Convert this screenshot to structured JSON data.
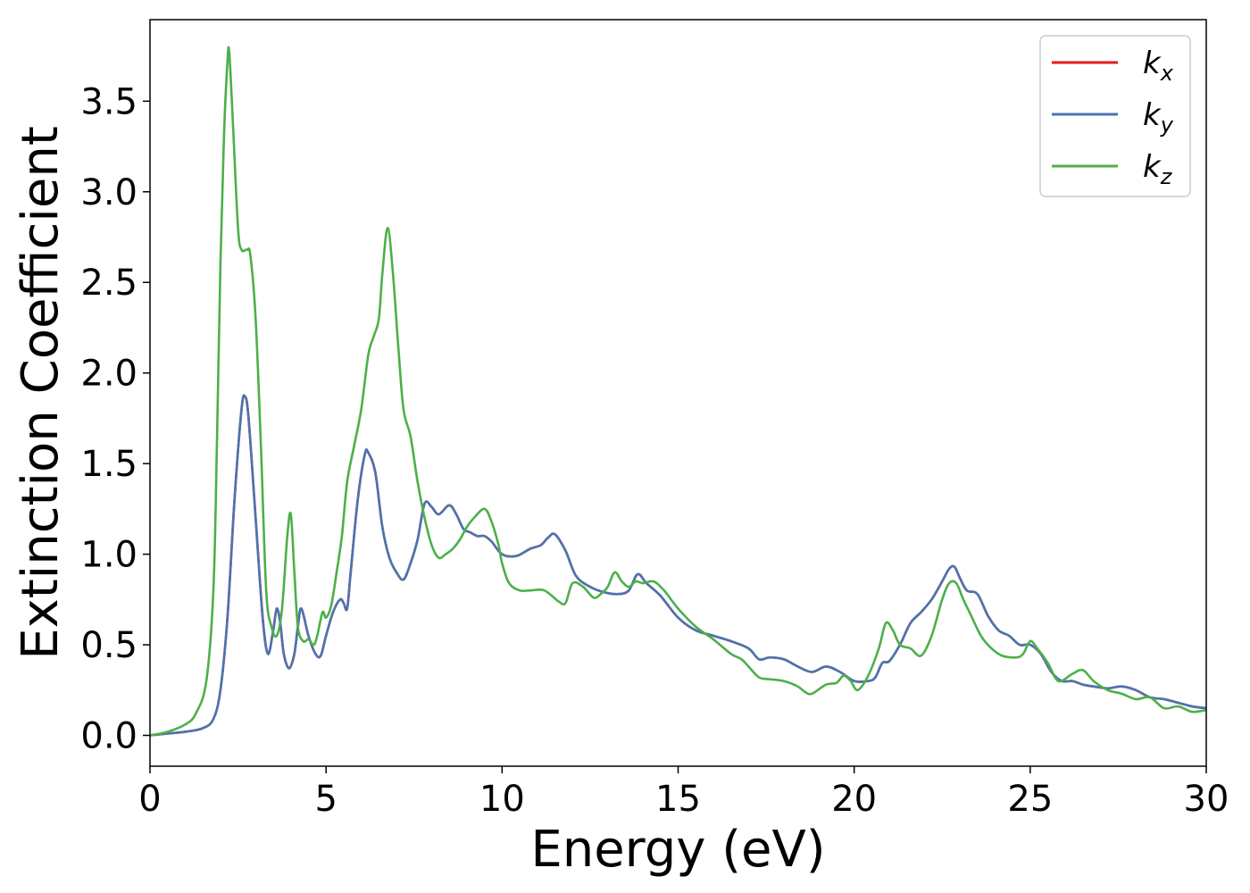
{
  "chart_data": {
    "type": "line",
    "title": "",
    "xlabel": "Energy (eV)",
    "ylabel": "Extinction Coefficient",
    "xlim": [
      0,
      30
    ],
    "ylim": [
      -0.17,
      3.95
    ],
    "xticks": [
      0,
      5,
      10,
      15,
      20,
      25,
      30
    ],
    "xtick_labels": [
      "0",
      "5",
      "10",
      "15",
      "20",
      "25",
      "30"
    ],
    "yticks": [
      0.0,
      0.5,
      1.0,
      1.5,
      2.0,
      2.5,
      3.0,
      3.5
    ],
    "ytick_labels": [
      "0.0",
      "0.5",
      "1.0",
      "1.5",
      "2.0",
      "2.5",
      "3.0",
      "3.5"
    ],
    "grid": false,
    "legend_position": "top-right",
    "series": [
      {
        "name": "k",
        "subscript": "x",
        "color": "#e41a1c",
        "x": [
          0,
          0.5,
          1.0,
          1.5,
          1.8,
          2.0,
          2.2,
          2.4,
          2.6,
          2.7,
          2.8,
          3.0,
          3.2,
          3.35,
          3.5,
          3.6,
          3.7,
          3.8,
          3.95,
          4.1,
          4.2,
          4.3,
          4.5,
          4.7,
          4.85,
          5.0,
          5.2,
          5.4,
          5.5,
          5.6,
          5.7,
          5.9,
          6.1,
          6.2,
          6.4,
          6.6,
          6.8,
          7.0,
          7.2,
          7.4,
          7.6,
          7.8,
          8.0,
          8.2,
          8.5,
          8.7,
          8.9,
          9.1,
          9.3,
          9.5,
          9.7,
          10.0,
          10.4,
          10.8,
          11.1,
          11.3,
          11.5,
          11.8,
          12.1,
          12.5,
          12.9,
          13.3,
          13.6,
          13.85,
          14.1,
          14.5,
          15.0,
          15.5,
          16.0,
          16.5,
          17.0,
          17.3,
          17.6,
          18.0,
          18.4,
          18.8,
          19.2,
          19.6,
          20.0,
          20.4,
          20.6,
          20.8,
          21.0,
          21.3,
          21.6,
          21.9,
          22.2,
          22.5,
          22.7,
          22.85,
          23.0,
          23.2,
          23.5,
          23.8,
          24.1,
          24.4,
          24.7,
          25.0,
          25.3,
          25.6,
          25.9,
          26.2,
          26.5,
          26.8,
          27.2,
          27.6,
          28.0,
          28.4,
          28.8,
          29.2,
          29.6,
          30.0
        ],
        "y": [
          0.0,
          0.01,
          0.02,
          0.04,
          0.09,
          0.25,
          0.65,
          1.3,
          1.8,
          1.87,
          1.75,
          1.2,
          0.65,
          0.45,
          0.58,
          0.7,
          0.62,
          0.45,
          0.37,
          0.45,
          0.6,
          0.7,
          0.55,
          0.45,
          0.44,
          0.55,
          0.68,
          0.75,
          0.73,
          0.7,
          0.9,
          1.3,
          1.55,
          1.56,
          1.45,
          1.15,
          0.98,
          0.9,
          0.86,
          0.95,
          1.08,
          1.28,
          1.26,
          1.22,
          1.27,
          1.22,
          1.14,
          1.12,
          1.1,
          1.1,
          1.07,
          1.0,
          0.99,
          1.03,
          1.05,
          1.09,
          1.11,
          1.02,
          0.88,
          0.82,
          0.79,
          0.78,
          0.8,
          0.89,
          0.84,
          0.77,
          0.65,
          0.58,
          0.55,
          0.52,
          0.48,
          0.42,
          0.43,
          0.42,
          0.38,
          0.35,
          0.38,
          0.35,
          0.3,
          0.3,
          0.32,
          0.4,
          0.41,
          0.5,
          0.62,
          0.68,
          0.75,
          0.85,
          0.92,
          0.93,
          0.87,
          0.8,
          0.78,
          0.66,
          0.58,
          0.55,
          0.5,
          0.5,
          0.45,
          0.35,
          0.3,
          0.3,
          0.28,
          0.27,
          0.26,
          0.27,
          0.25,
          0.21,
          0.2,
          0.18,
          0.16,
          0.15
        ]
      },
      {
        "name": "k",
        "subscript": "y",
        "color": "#4a74b0",
        "x": [
          0,
          0.5,
          1.0,
          1.5,
          1.8,
          2.0,
          2.2,
          2.4,
          2.6,
          2.7,
          2.8,
          3.0,
          3.2,
          3.35,
          3.5,
          3.6,
          3.7,
          3.8,
          3.95,
          4.1,
          4.2,
          4.3,
          4.5,
          4.7,
          4.85,
          5.0,
          5.2,
          5.4,
          5.5,
          5.6,
          5.7,
          5.9,
          6.1,
          6.2,
          6.4,
          6.6,
          6.8,
          7.0,
          7.2,
          7.4,
          7.6,
          7.8,
          8.0,
          8.2,
          8.5,
          8.7,
          8.9,
          9.1,
          9.3,
          9.5,
          9.7,
          10.0,
          10.4,
          10.8,
          11.1,
          11.3,
          11.5,
          11.8,
          12.1,
          12.5,
          12.9,
          13.3,
          13.6,
          13.85,
          14.1,
          14.5,
          15.0,
          15.5,
          16.0,
          16.5,
          17.0,
          17.3,
          17.6,
          18.0,
          18.4,
          18.8,
          19.2,
          19.6,
          20.0,
          20.4,
          20.6,
          20.8,
          21.0,
          21.3,
          21.6,
          21.9,
          22.2,
          22.5,
          22.7,
          22.85,
          23.0,
          23.2,
          23.5,
          23.8,
          24.1,
          24.4,
          24.7,
          25.0,
          25.3,
          25.6,
          25.9,
          26.2,
          26.5,
          26.8,
          27.2,
          27.6,
          28.0,
          28.4,
          28.8,
          29.2,
          29.6,
          30.0
        ],
        "y": [
          0.0,
          0.01,
          0.02,
          0.04,
          0.09,
          0.25,
          0.65,
          1.3,
          1.8,
          1.87,
          1.75,
          1.2,
          0.65,
          0.45,
          0.58,
          0.7,
          0.62,
          0.45,
          0.37,
          0.45,
          0.6,
          0.7,
          0.55,
          0.45,
          0.44,
          0.55,
          0.68,
          0.75,
          0.73,
          0.7,
          0.9,
          1.3,
          1.55,
          1.56,
          1.45,
          1.15,
          0.98,
          0.9,
          0.86,
          0.95,
          1.08,
          1.28,
          1.26,
          1.22,
          1.27,
          1.22,
          1.14,
          1.12,
          1.1,
          1.1,
          1.07,
          1.0,
          0.99,
          1.03,
          1.05,
          1.09,
          1.11,
          1.02,
          0.88,
          0.82,
          0.79,
          0.78,
          0.8,
          0.89,
          0.84,
          0.77,
          0.65,
          0.58,
          0.55,
          0.52,
          0.48,
          0.42,
          0.43,
          0.42,
          0.38,
          0.35,
          0.38,
          0.35,
          0.3,
          0.3,
          0.32,
          0.4,
          0.41,
          0.5,
          0.62,
          0.68,
          0.75,
          0.85,
          0.92,
          0.93,
          0.87,
          0.8,
          0.78,
          0.66,
          0.58,
          0.55,
          0.5,
          0.5,
          0.45,
          0.35,
          0.3,
          0.3,
          0.28,
          0.27,
          0.26,
          0.27,
          0.25,
          0.21,
          0.2,
          0.18,
          0.16,
          0.15
        ]
      },
      {
        "name": "k",
        "subscript": "z",
        "color": "#4daf4a",
        "x": [
          0,
          0.5,
          1.0,
          1.3,
          1.6,
          1.8,
          1.9,
          2.0,
          2.1,
          2.2,
          2.25,
          2.35,
          2.5,
          2.6,
          2.75,
          2.85,
          3.0,
          3.15,
          3.3,
          3.45,
          3.6,
          3.75,
          3.9,
          4.0,
          4.1,
          4.2,
          4.35,
          4.5,
          4.65,
          4.75,
          4.9,
          5.0,
          5.15,
          5.3,
          5.45,
          5.6,
          5.8,
          6.0,
          6.2,
          6.35,
          6.5,
          6.6,
          6.75,
          6.9,
          7.05,
          7.2,
          7.4,
          7.6,
          7.8,
          8.0,
          8.2,
          8.4,
          8.6,
          8.8,
          9.0,
          9.2,
          9.5,
          9.7,
          9.9,
          10.0,
          10.2,
          10.5,
          10.8,
          11.2,
          11.6,
          11.8,
          12.0,
          12.3,
          12.6,
          12.8,
          13.0,
          13.2,
          13.4,
          13.6,
          13.8,
          14.0,
          14.3,
          14.6,
          15.0,
          15.5,
          16.0,
          16.5,
          16.8,
          17.0,
          17.3,
          17.6,
          18.0,
          18.4,
          18.6,
          18.8,
          19.2,
          19.5,
          19.7,
          19.9,
          20.1,
          20.4,
          20.7,
          20.9,
          21.1,
          21.3,
          21.6,
          21.9,
          22.2,
          22.5,
          22.7,
          22.9,
          23.1,
          23.3,
          23.6,
          23.9,
          24.2,
          24.6,
          24.8,
          25.0,
          25.2,
          25.5,
          25.8,
          26.2,
          26.5,
          26.8,
          27.2,
          27.6,
          28.0,
          28.4,
          28.8,
          29.2,
          29.6,
          30.0
        ],
        "y": [
          0.0,
          0.02,
          0.06,
          0.12,
          0.3,
          0.8,
          1.6,
          2.6,
          3.3,
          3.72,
          3.77,
          3.4,
          2.8,
          2.68,
          2.68,
          2.65,
          2.3,
          1.6,
          0.8,
          0.6,
          0.55,
          0.7,
          1.1,
          1.22,
          0.9,
          0.6,
          0.52,
          0.53,
          0.5,
          0.55,
          0.68,
          0.65,
          0.72,
          0.9,
          1.1,
          1.4,
          1.6,
          1.8,
          2.1,
          2.2,
          2.3,
          2.55,
          2.8,
          2.55,
          2.15,
          1.8,
          1.65,
          1.4,
          1.2,
          1.05,
          0.98,
          1.0,
          1.03,
          1.08,
          1.15,
          1.2,
          1.25,
          1.18,
          1.05,
          0.95,
          0.84,
          0.8,
          0.8,
          0.8,
          0.74,
          0.73,
          0.84,
          0.82,
          0.76,
          0.78,
          0.82,
          0.9,
          0.85,
          0.82,
          0.85,
          0.84,
          0.85,
          0.8,
          0.7,
          0.6,
          0.53,
          0.45,
          0.42,
          0.38,
          0.32,
          0.31,
          0.3,
          0.27,
          0.24,
          0.23,
          0.28,
          0.29,
          0.33,
          0.3,
          0.25,
          0.33,
          0.48,
          0.62,
          0.58,
          0.5,
          0.48,
          0.44,
          0.55,
          0.75,
          0.84,
          0.84,
          0.75,
          0.67,
          0.55,
          0.48,
          0.44,
          0.43,
          0.45,
          0.52,
          0.48,
          0.4,
          0.3,
          0.34,
          0.36,
          0.3,
          0.25,
          0.23,
          0.2,
          0.21,
          0.15,
          0.16,
          0.13,
          0.14
        ]
      }
    ]
  }
}
